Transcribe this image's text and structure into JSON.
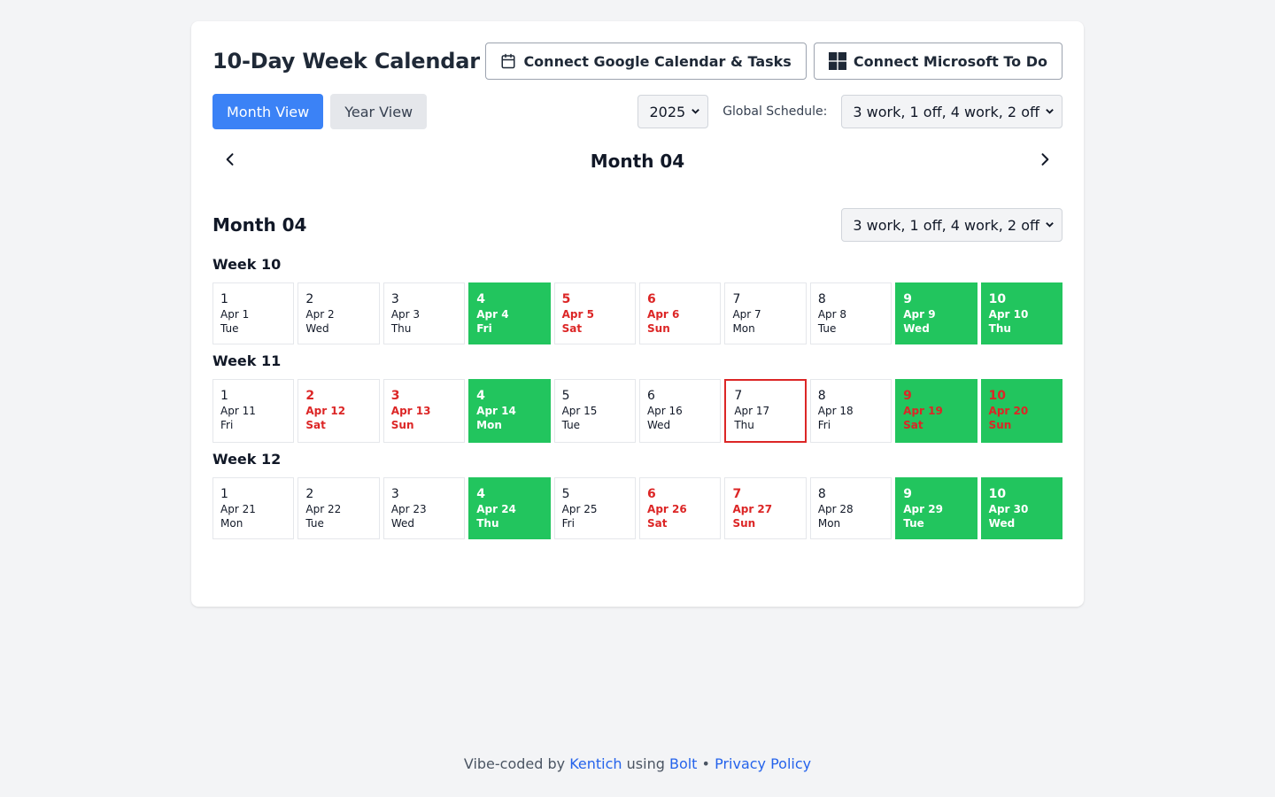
{
  "header": {
    "title": "10-Day Week Calendar",
    "google_button": "Connect Google Calendar & Tasks",
    "microsoft_button": "Connect Microsoft To Do"
  },
  "controls": {
    "month_view": "Month View",
    "year_view": "Year View",
    "year_value": "2025",
    "schedule_label": "Global Schedule:",
    "schedule_value": "3 work, 1 off, 4 work, 2 off"
  },
  "nav": {
    "title": "Month 04"
  },
  "month": {
    "title": "Month 04",
    "schedule_value": "3 work, 1 off, 4 work, 2 off",
    "weeks": [
      {
        "title": "Week 10",
        "days": [
          {
            "num": "1",
            "date": "Apr 1",
            "dow": "Tue",
            "state": "normal"
          },
          {
            "num": "2",
            "date": "Apr 2",
            "dow": "Wed",
            "state": "normal"
          },
          {
            "num": "3",
            "date": "Apr 3",
            "dow": "Thu",
            "state": "normal"
          },
          {
            "num": "4",
            "date": "Apr 4",
            "dow": "Fri",
            "state": "work"
          },
          {
            "num": "5",
            "date": "Apr 5",
            "dow": "Sat",
            "state": "weekend"
          },
          {
            "num": "6",
            "date": "Apr 6",
            "dow": "Sun",
            "state": "weekend"
          },
          {
            "num": "7",
            "date": "Apr 7",
            "dow": "Mon",
            "state": "normal"
          },
          {
            "num": "8",
            "date": "Apr 8",
            "dow": "Tue",
            "state": "normal"
          },
          {
            "num": "9",
            "date": "Apr 9",
            "dow": "Wed",
            "state": "work"
          },
          {
            "num": "10",
            "date": "Apr 10",
            "dow": "Thu",
            "state": "work"
          }
        ]
      },
      {
        "title": "Week 11",
        "days": [
          {
            "num": "1",
            "date": "Apr 11",
            "dow": "Fri",
            "state": "normal"
          },
          {
            "num": "2",
            "date": "Apr 12",
            "dow": "Sat",
            "state": "weekend"
          },
          {
            "num": "3",
            "date": "Apr 13",
            "dow": "Sun",
            "state": "weekend"
          },
          {
            "num": "4",
            "date": "Apr 14",
            "dow": "Mon",
            "state": "work"
          },
          {
            "num": "5",
            "date": "Apr 15",
            "dow": "Tue",
            "state": "normal"
          },
          {
            "num": "6",
            "date": "Apr 16",
            "dow": "Wed",
            "state": "normal"
          },
          {
            "num": "7",
            "date": "Apr 17",
            "dow": "Thu",
            "state": "today"
          },
          {
            "num": "8",
            "date": "Apr 18",
            "dow": "Fri",
            "state": "normal"
          },
          {
            "num": "9",
            "date": "Apr 19",
            "dow": "Sat",
            "state": "work-weekend"
          },
          {
            "num": "10",
            "date": "Apr 20",
            "dow": "Sun",
            "state": "work-weekend"
          }
        ]
      },
      {
        "title": "Week 12",
        "days": [
          {
            "num": "1",
            "date": "Apr 21",
            "dow": "Mon",
            "state": "normal"
          },
          {
            "num": "2",
            "date": "Apr 22",
            "dow": "Tue",
            "state": "normal"
          },
          {
            "num": "3",
            "date": "Apr 23",
            "dow": "Wed",
            "state": "normal"
          },
          {
            "num": "4",
            "date": "Apr 24",
            "dow": "Thu",
            "state": "work"
          },
          {
            "num": "5",
            "date": "Apr 25",
            "dow": "Fri",
            "state": "normal"
          },
          {
            "num": "6",
            "date": "Apr 26",
            "dow": "Sat",
            "state": "weekend"
          },
          {
            "num": "7",
            "date": "Apr 27",
            "dow": "Sun",
            "state": "weekend"
          },
          {
            "num": "8",
            "date": "Apr 28",
            "dow": "Mon",
            "state": "normal"
          },
          {
            "num": "9",
            "date": "Apr 29",
            "dow": "Tue",
            "state": "work"
          },
          {
            "num": "10",
            "date": "Apr 30",
            "dow": "Wed",
            "state": "work"
          }
        ]
      }
    ]
  },
  "footer": {
    "prefix": "Vibe-coded by",
    "author": "Kentich",
    "using": "using",
    "tool": "Bolt",
    "separator": "•",
    "privacy": "Privacy Policy"
  },
  "colors": {
    "primary": "#3b82f6",
    "work": "#22c55e",
    "weekend_text": "#dc2626",
    "today_border": "#dc2626",
    "link": "#2563eb"
  },
  "icons": {
    "google": "calendar-icon",
    "microsoft": "windows-icon",
    "prev": "chevron-left-icon",
    "next": "chevron-right-icon"
  }
}
